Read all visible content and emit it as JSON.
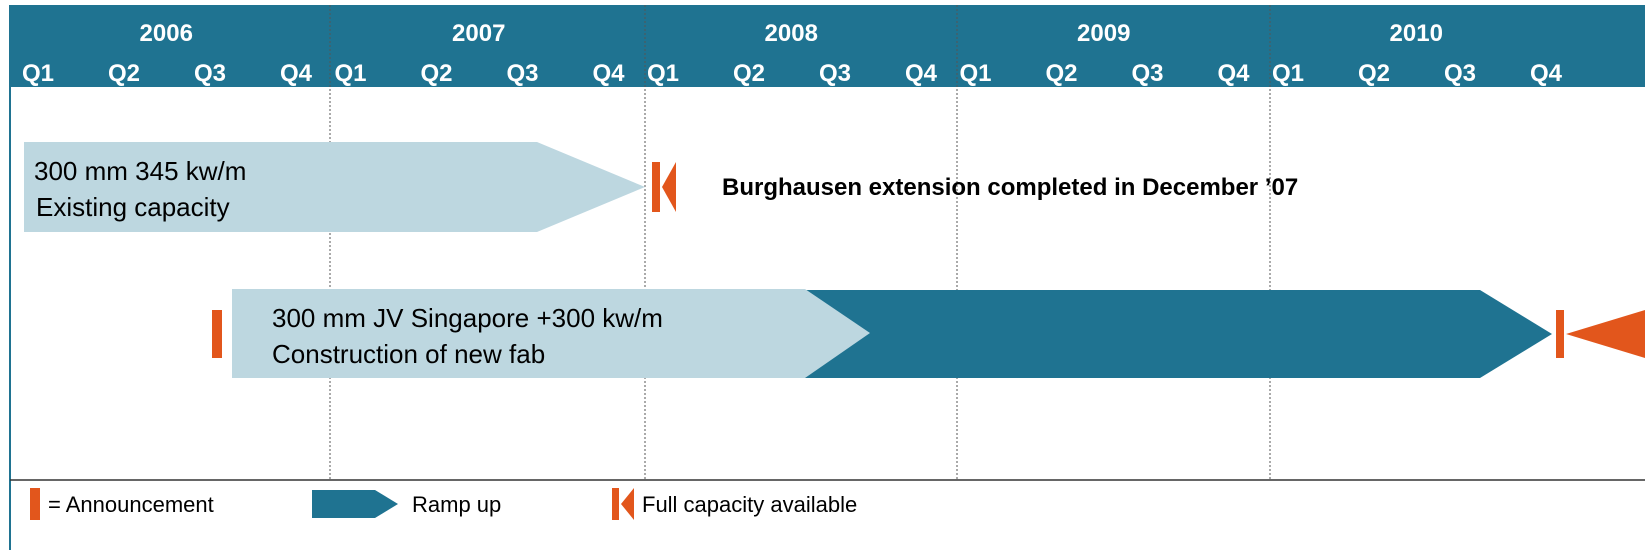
{
  "header": {
    "years": [
      {
        "label": "2006",
        "quarters": [
          "Q1",
          "Q2",
          "Q3",
          "Q4"
        ]
      },
      {
        "label": "2007",
        "quarters": [
          "Q1",
          "Q2",
          "Q3",
          "Q4"
        ]
      },
      {
        "label": "2008",
        "quarters": [
          "Q1",
          "Q2",
          "Q3",
          "Q4"
        ]
      },
      {
        "label": "2009",
        "quarters": [
          "Q1",
          "Q2",
          "Q3",
          "Q4"
        ]
      },
      {
        "label": "2010",
        "quarters": [
          "Q1",
          "Q2",
          "Q3",
          "Q4"
        ]
      }
    ]
  },
  "bars": [
    {
      "lines": [
        "300 mm 345 kw/m",
        "Existing capacity"
      ]
    },
    {
      "lines": [
        "300 mm JV Singapore +300 kw/m",
        "Construction of new fab"
      ]
    }
  ],
  "annotation": "Burghausen extension completed in December ’07",
  "legend": [
    "= Announcement",
    "Ramp up",
    "Full capacity available"
  ]
}
